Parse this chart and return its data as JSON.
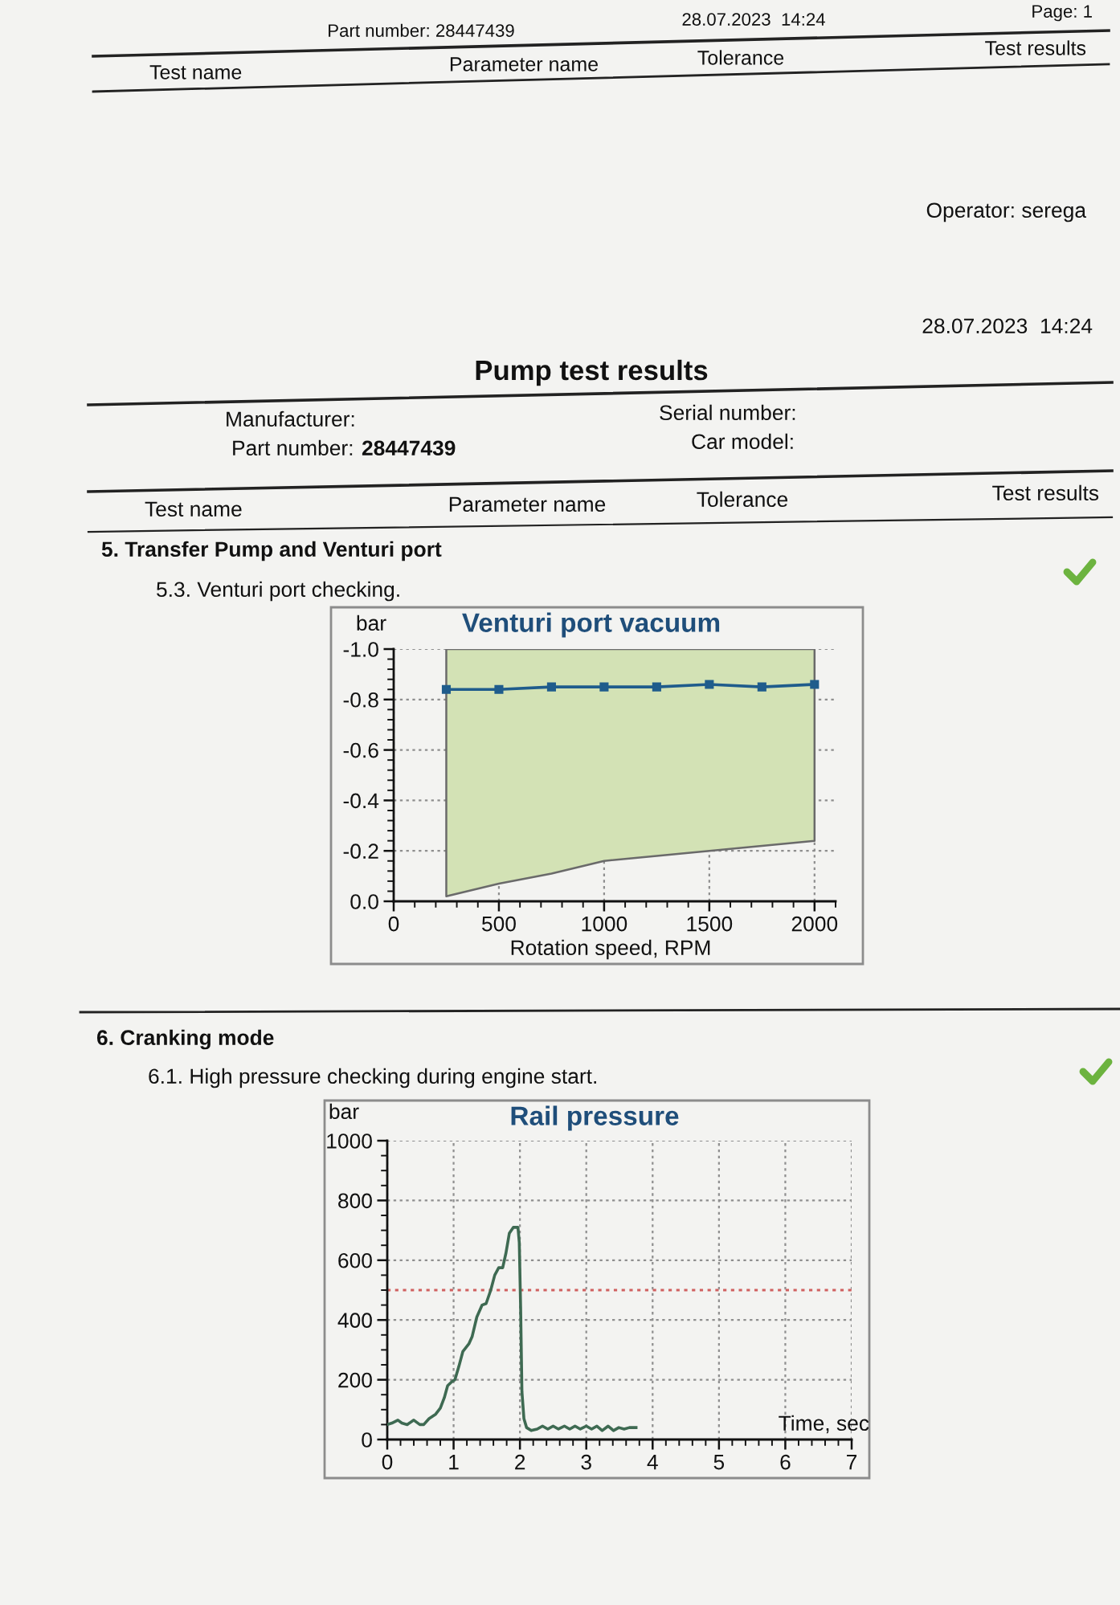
{
  "chart_data": [
    {
      "type": "other",
      "title": "Pump test results",
      "annotations": [
        "Part number: 28447439",
        "28.07.2023  14:24",
        "Page: 1",
        "Test name",
        "Parameter name",
        "Tolerance",
        "Test results",
        "Operator: serega",
        "28.07.2023  14:24",
        "Manufacturer:",
        "Part number:",
        "28447439",
        "Serial number:",
        "Car model:",
        "Test name",
        "Parameter name",
        "Tolerance",
        "Test results"
      ]
    },
    {
      "type": "line",
      "title": "Venturi port vacuum",
      "xlabel": "Rotation speed, RPM",
      "ylabel": "bar",
      "annotations": [
        "5. Transfer Pump and Venturi port",
        "5.3. Venturi port checking."
      ],
      "x": [
        250,
        500,
        750,
        1000,
        1250,
        1500,
        1750,
        2000
      ],
      "series": [
        {
          "type": "line",
          "color": "#1f5c8c",
          "marker": "square",
          "values": [
            -0.84,
            -0.84,
            -0.85,
            -0.85,
            -0.85,
            -0.86,
            -0.85,
            -0.86
          ],
          "lower": [
            -0.02,
            -0.07,
            -0.11,
            -0.16,
            -0.18,
            -0.2,
            -0.22,
            -0.24
          ],
          "upper": [
            -1.0,
            -1.0,
            -1.0,
            -1.0,
            -1.0,
            -1.0,
            -1.0,
            -1.0
          ]
        }
      ],
      "xlim": [
        0,
        2100
      ],
      "ylim": [
        0.0,
        -1.0
      ],
      "xticks": [
        0,
        {
          "value": 100,
          "label": null
        },
        {
          "value": 200,
          "label": null
        },
        {
          "value": 300,
          "label": null
        },
        {
          "value": 400,
          "label": null
        },
        500,
        {
          "value": 600,
          "label": null
        },
        {
          "value": 700,
          "label": null
        },
        {
          "value": 800,
          "label": null
        },
        {
          "value": 900,
          "label": null
        },
        1000,
        {
          "value": 1100,
          "label": null
        },
        {
          "value": 1200,
          "label": null
        },
        {
          "value": 1300,
          "label": null
        },
        {
          "value": 1400,
          "label": null
        },
        1500,
        {
          "value": 1600,
          "label": null
        },
        {
          "value": 1700,
          "label": null
        },
        {
          "value": 1800,
          "label": null
        },
        {
          "value": 1900,
          "label": null
        },
        2000,
        {
          "value": 2100,
          "label": null
        }
      ],
      "yticks": [
        {
          "value": -1.0,
          "label": "-1.0"
        },
        {
          "value": -0.96,
          "label": null
        },
        {
          "value": -0.92,
          "label": null
        },
        {
          "value": -0.88,
          "label": null
        },
        {
          "value": -0.84,
          "label": null
        },
        {
          "value": -0.8,
          "label": "-0.8"
        },
        {
          "value": -0.76,
          "label": null
        },
        {
          "value": -0.72,
          "label": null
        },
        {
          "value": -0.68,
          "label": null
        },
        {
          "value": -0.64,
          "label": null
        },
        {
          "value": -0.6,
          "label": "-0.6"
        },
        {
          "value": -0.56,
          "label": null
        },
        {
          "value": -0.52,
          "label": null
        },
        {
          "value": -0.48,
          "label": null
        },
        {
          "value": -0.44,
          "label": null
        },
        {
          "value": -0.4,
          "label": "-0.4"
        },
        {
          "value": -0.36,
          "label": null
        },
        {
          "value": -0.32,
          "label": null
        },
        {
          "value": -0.28,
          "label": null
        },
        {
          "value": -0.24,
          "label": null
        },
        {
          "value": -0.2,
          "label": "-0.2"
        },
        {
          "value": -0.16,
          "label": null
        },
        {
          "value": -0.12,
          "label": null
        },
        {
          "value": -0.08,
          "label": null
        },
        {
          "value": -0.04,
          "label": null
        },
        {
          "value": 0.0,
          "label": "0.0"
        }
      ],
      "grid": true
    },
    {
      "type": "line",
      "title": "Rail pressure",
      "xlabel": "Time, sec",
      "ylabel": "bar",
      "annotations": [
        "6. Cranking mode",
        "6.1. High pressure checking during engine start."
      ],
      "x": [
        0,
        0.07,
        0.16,
        0.22,
        0.3,
        0.4,
        0.49,
        0.55,
        0.63,
        0.73,
        0.8,
        0.86,
        0.91,
        0.98,
        1.02,
        1.08,
        1.14,
        1.23,
        1.28,
        1.35,
        1.43,
        1.49,
        1.56,
        1.62,
        1.68,
        1.74,
        1.79,
        1.84,
        1.9,
        1.97,
        1.99,
        2.01,
        2.03,
        2.06,
        2.1,
        2.17,
        2.26,
        2.34,
        2.42,
        2.5,
        2.58,
        2.67,
        2.75,
        2.83,
        2.91,
        3.0,
        3.08,
        3.16,
        3.24,
        3.33,
        3.41,
        3.49,
        3.57,
        3.65,
        3.75
      ],
      "series": [
        {
          "color": "#3e6a52",
          "values": [
            50,
            55,
            65,
            55,
            50,
            65,
            50,
            50,
            70,
            85,
            105,
            140,
            180,
            195,
            200,
            245,
            295,
            320,
            345,
            410,
            450,
            455,
            500,
            550,
            575,
            575,
            625,
            690,
            710,
            710,
            660,
            445,
            160,
            70,
            40,
            30,
            35,
            45,
            35,
            45,
            35,
            45,
            35,
            45,
            35,
            45,
            35,
            45,
            30,
            45,
            30,
            40,
            35,
            40,
            40
          ]
        }
      ],
      "xlim": [
        0,
        7
      ],
      "ylim": [
        0,
        1000
      ],
      "xticks": [
        0,
        {
          "value": 0.2,
          "label": null
        },
        {
          "value": 0.4,
          "label": null
        },
        {
          "value": 0.6,
          "label": null
        },
        {
          "value": 0.8,
          "label": null
        },
        1,
        {
          "value": 1.2,
          "label": null
        },
        {
          "value": 1.4,
          "label": null
        },
        {
          "value": 1.6,
          "label": null
        },
        {
          "value": 1.8,
          "label": null
        },
        2,
        {
          "value": 2.2,
          "label": null
        },
        {
          "value": 2.4,
          "label": null
        },
        {
          "value": 2.6,
          "label": null
        },
        {
          "value": 2.8,
          "label": null
        },
        3,
        {
          "value": 3.2,
          "label": null
        },
        {
          "value": 3.4,
          "label": null
        },
        {
          "value": 3.6,
          "label": null
        },
        {
          "value": 3.8,
          "label": null
        },
        4,
        {
          "value": 4.2,
          "label": null
        },
        {
          "value": 4.4,
          "label": null
        },
        {
          "value": 4.6,
          "label": null
        },
        {
          "value": 4.8,
          "label": null
        },
        5,
        {
          "value": 5.2,
          "label": null
        },
        {
          "value": 5.4,
          "label": null
        },
        {
          "value": 5.6,
          "label": null
        },
        {
          "value": 5.8,
          "label": null
        },
        6,
        {
          "value": 6.2,
          "label": null
        },
        {
          "value": 6.4,
          "label": null
        },
        {
          "value": 6.6,
          "label": null
        },
        {
          "value": 6.8,
          "label": null
        },
        7
      ],
      "yticks": [
        0,
        {
          "value": 50,
          "label": null
        },
        {
          "value": 100,
          "label": null
        },
        {
          "value": 150,
          "label": null
        },
        200,
        {
          "value": 250,
          "label": null
        },
        {
          "value": 300,
          "label": null
        },
        {
          "value": 350,
          "label": null
        },
        400,
        {
          "value": 450,
          "label": null
        },
        {
          "value": 500,
          "label": null
        },
        {
          "value": 550,
          "label": null
        },
        600,
        {
          "value": 650,
          "label": null
        },
        {
          "value": 700,
          "label": null
        },
        {
          "value": 750,
          "label": null
        },
        800,
        {
          "value": 850,
          "label": null
        },
        {
          "value": 900,
          "label": null
        },
        {
          "value": 950,
          "label": null
        },
        1000
      ],
      "ref_lines": [
        {
          "axis": "y",
          "value": 500,
          "color": "#d06060",
          "line_style": "dotted"
        }
      ],
      "grid": true
    }
  ]
}
